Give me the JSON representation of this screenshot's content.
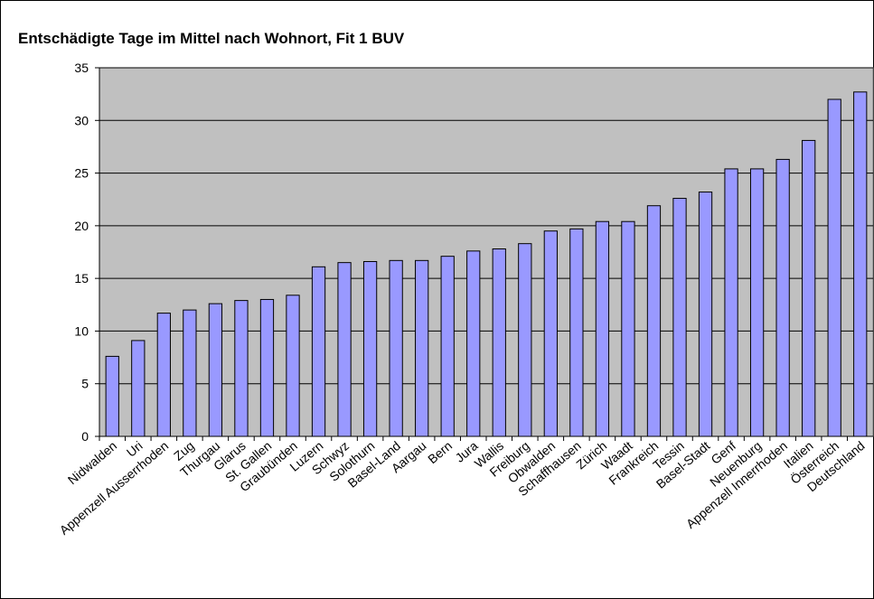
{
  "chart_data": {
    "type": "bar",
    "title": "Entschädigte Tage im Mittel nach Wohnort, Fit 1 BUV",
    "categories": [
      "Nidwalden",
      "Uri",
      "Appenzell Ausserrhoden",
      "Zug",
      "Thurgau",
      "Glarus",
      "St. Gallen",
      "Graubünden",
      "Luzern",
      "Schwyz",
      "Solothurn",
      "Basel-Land",
      "Aargau",
      "Bern",
      "Jura",
      "Wallis",
      "Freiburg",
      "Obwalden",
      "Schaffhausen",
      "Zürich",
      "Waadt",
      "Frankreich",
      "Tessin",
      "Basel-Stadt",
      "Genf",
      "Neuenburg",
      "Appenzell Innerrhoden",
      "Italien",
      "Österreich",
      "Deutschland"
    ],
    "values": [
      7.6,
      9.1,
      11.7,
      12.0,
      12.6,
      12.9,
      13.0,
      13.4,
      16.1,
      16.5,
      16.6,
      16.7,
      16.7,
      17.1,
      17.6,
      17.8,
      18.3,
      19.5,
      19.7,
      20.4,
      20.4,
      21.9,
      22.6,
      23.2,
      25.4,
      25.4,
      26.3,
      28.1,
      32.0,
      32.7
    ],
    "color": "#9999ff",
    "ylim": [
      0,
      35
    ],
    "yticks": [
      0,
      5,
      10,
      15,
      20,
      25,
      30,
      35
    ],
    "grid": true
  }
}
